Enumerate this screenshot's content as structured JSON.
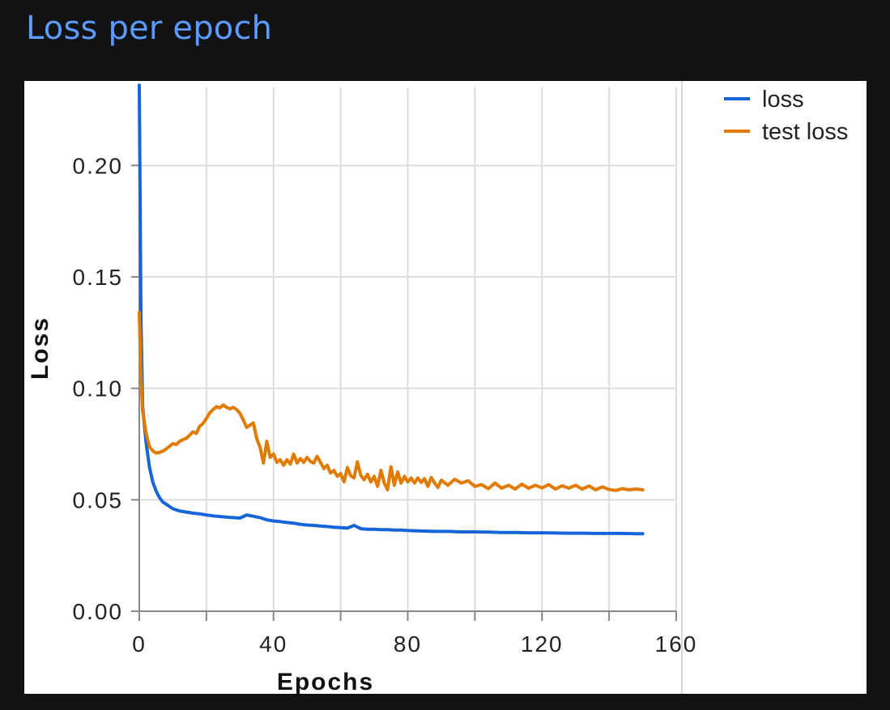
{
  "page": {
    "title": "Loss per epoch"
  },
  "colors": {
    "page_bg": "#121212",
    "title": "#5b9bff",
    "loss": "#1565d8",
    "test_loss": "#e07b00",
    "grid": "#dddddd"
  },
  "chart_data": {
    "type": "line",
    "title": "",
    "xlabel": "Epochs",
    "ylabel": "Loss",
    "xlim": [
      0,
      160
    ],
    "ylim": [
      0,
      0.235
    ],
    "xticks": [
      0,
      40,
      80,
      120,
      160
    ],
    "xtick_labels": [
      "0",
      "40",
      "80",
      "120",
      "160"
    ],
    "yticks": [
      0,
      0.05,
      0.1,
      0.15,
      0.2
    ],
    "ytick_labels": [
      "0.00",
      "0.05",
      "0.10",
      "0.15",
      "0.20"
    ],
    "grid": true,
    "legend": "top-right",
    "series": [
      {
        "name": "loss",
        "color": "#1565d8",
        "points": [
          [
            0,
            0.236
          ],
          [
            0.5,
            0.13
          ],
          [
            1,
            0.092
          ],
          [
            2,
            0.076
          ],
          [
            3,
            0.065
          ],
          [
            4,
            0.058
          ],
          [
            5,
            0.054
          ],
          [
            6,
            0.051
          ],
          [
            7,
            0.049
          ],
          [
            8,
            0.048
          ],
          [
            9,
            0.047
          ],
          [
            10,
            0.046
          ],
          [
            12,
            0.045
          ],
          [
            14,
            0.0445
          ],
          [
            16,
            0.044
          ],
          [
            18,
            0.0437
          ],
          [
            20,
            0.0432
          ],
          [
            22,
            0.0428
          ],
          [
            24,
            0.0425
          ],
          [
            26,
            0.0422
          ],
          [
            28,
            0.042
          ],
          [
            30,
            0.0418
          ],
          [
            32,
            0.0432
          ],
          [
            34,
            0.0426
          ],
          [
            36,
            0.042
          ],
          [
            38,
            0.041
          ],
          [
            40,
            0.0405
          ],
          [
            42,
            0.0402
          ],
          [
            44,
            0.0398
          ],
          [
            46,
            0.0395
          ],
          [
            48,
            0.039
          ],
          [
            50,
            0.0387
          ],
          [
            52,
            0.0385
          ],
          [
            54,
            0.0382
          ],
          [
            56,
            0.038
          ],
          [
            58,
            0.0377
          ],
          [
            60,
            0.0375
          ],
          [
            62,
            0.0373
          ],
          [
            64,
            0.0385
          ],
          [
            66,
            0.037
          ],
          [
            68,
            0.0368
          ],
          [
            70,
            0.0368
          ],
          [
            72,
            0.0366
          ],
          [
            74,
            0.0366
          ],
          [
            76,
            0.0364
          ],
          [
            78,
            0.0364
          ],
          [
            80,
            0.0362
          ],
          [
            84,
            0.036
          ],
          [
            88,
            0.0358
          ],
          [
            92,
            0.0358
          ],
          [
            96,
            0.0356
          ],
          [
            100,
            0.0356
          ],
          [
            104,
            0.0355
          ],
          [
            108,
            0.0353
          ],
          [
            112,
            0.0353
          ],
          [
            116,
            0.0352
          ],
          [
            120,
            0.0352
          ],
          [
            124,
            0.0351
          ],
          [
            128,
            0.035
          ],
          [
            132,
            0.035
          ],
          [
            136,
            0.0349
          ],
          [
            140,
            0.0349
          ],
          [
            144,
            0.0349
          ],
          [
            148,
            0.0348
          ],
          [
            150,
            0.0348
          ]
        ]
      },
      {
        "name": "test loss",
        "color": "#e07b00",
        "points": [
          [
            0,
            0.134
          ],
          [
            0.5,
            0.105
          ],
          [
            1,
            0.09
          ],
          [
            2,
            0.08
          ],
          [
            3,
            0.074
          ],
          [
            4,
            0.072
          ],
          [
            5,
            0.071
          ],
          [
            6,
            0.0712
          ],
          [
            7,
            0.0718
          ],
          [
            8,
            0.0728
          ],
          [
            9,
            0.074
          ],
          [
            10,
            0.0752
          ],
          [
            11,
            0.0748
          ],
          [
            12,
            0.0762
          ],
          [
            13,
            0.077
          ],
          [
            14,
            0.0775
          ],
          [
            15,
            0.079
          ],
          [
            16,
            0.0805
          ],
          [
            17,
            0.0798
          ],
          [
            18,
            0.083
          ],
          [
            19,
            0.0842
          ],
          [
            20,
            0.0865
          ],
          [
            21,
            0.089
          ],
          [
            22,
            0.0905
          ],
          [
            23,
            0.0918
          ],
          [
            24,
            0.0912
          ],
          [
            25,
            0.0925
          ],
          [
            26,
            0.0915
          ],
          [
            27,
            0.0908
          ],
          [
            28,
            0.0915
          ],
          [
            29,
            0.0905
          ],
          [
            30,
            0.0888
          ],
          [
            31,
            0.0858
          ],
          [
            32,
            0.0825
          ],
          [
            33,
            0.0835
          ],
          [
            34,
            0.0845
          ],
          [
            35,
            0.0775
          ],
          [
            36,
            0.0735
          ],
          [
            37,
            0.0665
          ],
          [
            38,
            0.0762
          ],
          [
            39,
            0.069
          ],
          [
            40,
            0.0705
          ],
          [
            41,
            0.0668
          ],
          [
            42,
            0.068
          ],
          [
            43,
            0.0655
          ],
          [
            44,
            0.068
          ],
          [
            45,
            0.066
          ],
          [
            46,
            0.0705
          ],
          [
            47,
            0.0665
          ],
          [
            48,
            0.0685
          ],
          [
            49,
            0.0668
          ],
          [
            50,
            0.069
          ],
          [
            51,
            0.0672
          ],
          [
            52,
            0.0665
          ],
          [
            53,
            0.0695
          ],
          [
            54,
            0.0668
          ],
          [
            55,
            0.064
          ],
          [
            56,
            0.0655
          ],
          [
            57,
            0.062
          ],
          [
            58,
            0.0632
          ],
          [
            59,
            0.0605
          ],
          [
            60,
            0.0618
          ],
          [
            61,
            0.058
          ],
          [
            62,
            0.0645
          ],
          [
            63,
            0.0608
          ],
          [
            64,
            0.0598
          ],
          [
            65,
            0.067
          ],
          [
            66,
            0.061
          ],
          [
            67,
            0.059
          ],
          [
            68,
            0.0615
          ],
          [
            69,
            0.058
          ],
          [
            70,
            0.0605
          ],
          [
            71,
            0.056
          ],
          [
            72,
            0.0632
          ],
          [
            73,
            0.0575
          ],
          [
            74,
            0.0545
          ],
          [
            75,
            0.0648
          ],
          [
            76,
            0.0565
          ],
          [
            77,
            0.0625
          ],
          [
            78,
            0.0575
          ],
          [
            79,
            0.0605
          ],
          [
            80,
            0.058
          ],
          [
            81,
            0.0598
          ],
          [
            82,
            0.0575
          ],
          [
            83,
            0.0598
          ],
          [
            84,
            0.0578
          ],
          [
            85,
            0.0595
          ],
          [
            86,
            0.056
          ],
          [
            87,
            0.06
          ],
          [
            88,
            0.0575
          ],
          [
            89,
            0.0555
          ],
          [
            90,
            0.0588
          ],
          [
            92,
            0.0565
          ],
          [
            94,
            0.0592
          ],
          [
            96,
            0.0575
          ],
          [
            98,
            0.0585
          ],
          [
            100,
            0.056
          ],
          [
            102,
            0.0568
          ],
          [
            104,
            0.055
          ],
          [
            106,
            0.0575
          ],
          [
            108,
            0.0552
          ],
          [
            110,
            0.0565
          ],
          [
            112,
            0.0548
          ],
          [
            114,
            0.057
          ],
          [
            116,
            0.0552
          ],
          [
            118,
            0.0565
          ],
          [
            120,
            0.0553
          ],
          [
            122,
            0.0568
          ],
          [
            124,
            0.0548
          ],
          [
            126,
            0.0563
          ],
          [
            128,
            0.0552
          ],
          [
            130,
            0.0565
          ],
          [
            132,
            0.0548
          ],
          [
            134,
            0.0562
          ],
          [
            136,
            0.0545
          ],
          [
            138,
            0.0558
          ],
          [
            140,
            0.0546
          ],
          [
            142,
            0.0542
          ],
          [
            144,
            0.055
          ],
          [
            146,
            0.0545
          ],
          [
            148,
            0.0548
          ],
          [
            150,
            0.0545
          ]
        ]
      }
    ]
  }
}
